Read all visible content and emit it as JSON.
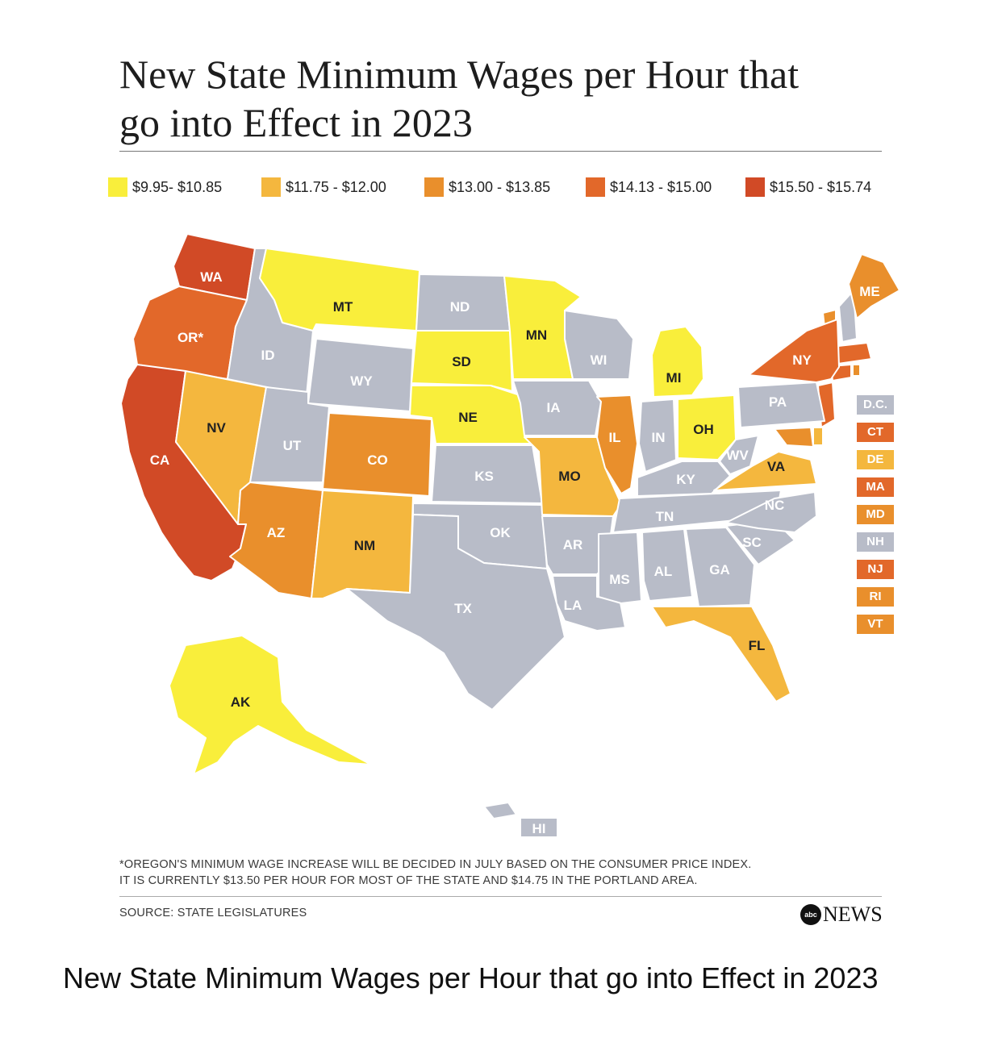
{
  "title": "New State Minimum Wages per Hour that go into Effect in 2023",
  "colors": {
    "band1": "#f9ee3b",
    "band2": "#f4b73e",
    "band3": "#e98f2c",
    "band4": "#e2682a",
    "band5": "#d14a26",
    "no_change": "#b8bcc8",
    "label_dark": "#ffffff",
    "label_light": "#222222"
  },
  "legend": [
    {
      "label": "$9.95- $10.85",
      "color": "#f9ee3b"
    },
    {
      "label": "$11.75 - $12.00",
      "color": "#f4b73e"
    },
    {
      "label": "$13.00 - $13.85",
      "color": "#e98f2c"
    },
    {
      "label": "$14.13 - $15.00",
      "color": "#e2682a"
    },
    {
      "label": "$15.50 - $15.74",
      "color": "#d14a26"
    }
  ],
  "states": [
    {
      "abbr": "WA",
      "band": 5
    },
    {
      "abbr": "OR*",
      "band": 4
    },
    {
      "abbr": "CA",
      "band": 5
    },
    {
      "abbr": "ID",
      "band": 0
    },
    {
      "abbr": "NV",
      "band": 2
    },
    {
      "abbr": "MT",
      "band": 1
    },
    {
      "abbr": "WY",
      "band": 0
    },
    {
      "abbr": "UT",
      "band": 0
    },
    {
      "abbr": "AZ",
      "band": 3
    },
    {
      "abbr": "CO",
      "band": 3
    },
    {
      "abbr": "NM",
      "band": 2
    },
    {
      "abbr": "ND",
      "band": 0
    },
    {
      "abbr": "SD",
      "band": 1
    },
    {
      "abbr": "NE",
      "band": 1
    },
    {
      "abbr": "KS",
      "band": 0
    },
    {
      "abbr": "OK",
      "band": 0
    },
    {
      "abbr": "TX",
      "band": 0
    },
    {
      "abbr": "MN",
      "band": 1
    },
    {
      "abbr": "IA",
      "band": 0
    },
    {
      "abbr": "MO",
      "band": 2
    },
    {
      "abbr": "AR",
      "band": 0
    },
    {
      "abbr": "LA",
      "band": 0
    },
    {
      "abbr": "WI",
      "band": 0
    },
    {
      "abbr": "IL",
      "band": 3
    },
    {
      "abbr": "MI",
      "band": 1
    },
    {
      "abbr": "IN",
      "band": 0
    },
    {
      "abbr": "OH",
      "band": 1
    },
    {
      "abbr": "KY",
      "band": 0
    },
    {
      "abbr": "TN",
      "band": 0
    },
    {
      "abbr": "MS",
      "band": 0
    },
    {
      "abbr": "AL",
      "band": 0
    },
    {
      "abbr": "GA",
      "band": 0
    },
    {
      "abbr": "FL",
      "band": 2
    },
    {
      "abbr": "SC",
      "band": 0
    },
    {
      "abbr": "NC",
      "band": 0
    },
    {
      "abbr": "VA",
      "band": 2
    },
    {
      "abbr": "WV",
      "band": 0
    },
    {
      "abbr": "PA",
      "band": 0
    },
    {
      "abbr": "NY",
      "band": 4
    },
    {
      "abbr": "ME",
      "band": 3
    },
    {
      "abbr": "AK",
      "band": 1
    },
    {
      "abbr": "HI",
      "band": 0
    }
  ],
  "small_states": [
    {
      "abbr": "D.C.",
      "band": 0
    },
    {
      "abbr": "CT",
      "band": 4
    },
    {
      "abbr": "DE",
      "band": 2
    },
    {
      "abbr": "MA",
      "band": 4
    },
    {
      "abbr": "MD",
      "band": 3
    },
    {
      "abbr": "NH",
      "band": 0
    },
    {
      "abbr": "NJ",
      "band": 4
    },
    {
      "abbr": "RI",
      "band": 3
    },
    {
      "abbr": "VT",
      "band": 3
    }
  ],
  "footnote": {
    "line1": "*OREGON'S MINIMUM WAGE INCREASE WILL BE DECIDED IN JULY BASED ON THE CONSUMER PRICE INDEX.",
    "line2": "IT IS CURRENTLY $13.50 PER HOUR FOR MOST OF THE STATE AND $14.75 IN THE PORTLAND AREA."
  },
  "source": "SOURCE: STATE LEGISLATURES",
  "brand": {
    "mark": "abc",
    "name": "NEWS"
  },
  "caption": "New State Minimum Wages per Hour that go into Effect in 2023"
}
